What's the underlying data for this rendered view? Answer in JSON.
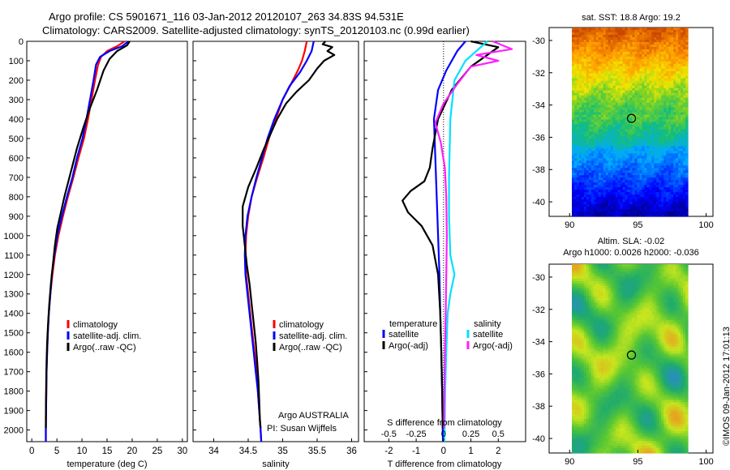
{
  "header": {
    "line1": "Argo profile: CS 5901671_116 03-Jan-2012 20120107_263 34.83S 94.531E",
    "line2": "Climatology: CARS2009. Satellite-adjusted climatology: synTS_20120103.nc (0.99d earlier)"
  },
  "credit": "©IMOS 09-Jan-2012 17:01:13",
  "colors": {
    "clim": "#ff0000",
    "sat": "#0000ff",
    "argo": "#000000",
    "sat_s": "#00e0ff",
    "argo_s": "#ff20ff"
  },
  "chart_data": [
    {
      "type": "line",
      "id": "temperature",
      "xlabel": "temperature (deg C)",
      "xlim": [
        -1,
        31
      ],
      "ylim": [
        2060,
        0
      ],
      "xticks": [
        0,
        5,
        10,
        15,
        20,
        25,
        30
      ],
      "yticks": [
        0,
        100,
        200,
        300,
        400,
        500,
        600,
        700,
        800,
        900,
        1000,
        1100,
        1200,
        1300,
        1400,
        1500,
        1600,
        1700,
        1800,
        1900,
        2000
      ],
      "legend": [
        "climatology",
        "satellite-adj. clim.",
        "Argo(..raw -QC)"
      ],
      "series": [
        {
          "name": "climatology",
          "color": "#ff0000",
          "points": [
            [
              18.5,
              0
            ],
            [
              17,
              25
            ],
            [
              15,
              50
            ],
            [
              13.8,
              80
            ],
            [
              13.2,
              120
            ],
            [
              12.6,
              200
            ],
            [
              11.9,
              300
            ],
            [
              11.2,
              400
            ],
            [
              10.4,
              500
            ],
            [
              9.3,
              600
            ],
            [
              8.3,
              700
            ],
            [
              7.2,
              800
            ],
            [
              6.2,
              900
            ],
            [
              5.3,
              1000
            ],
            [
              4.6,
              1100
            ],
            [
              4.1,
              1200
            ],
            [
              3.7,
              1300
            ],
            [
              3.4,
              1400
            ],
            [
              3.2,
              1500
            ],
            [
              3.05,
              1600
            ],
            [
              2.95,
              1700
            ],
            [
              2.9,
              1800
            ],
            [
              2.85,
              1900
            ],
            [
              2.8,
              2000
            ],
            [
              2.8,
              2060
            ]
          ]
        },
        {
          "name": "satellite-adj. clim.",
          "color": "#0000ff",
          "points": [
            [
              19.3,
              0
            ],
            [
              18,
              25
            ],
            [
              15.5,
              50
            ],
            [
              13.6,
              80
            ],
            [
              12.8,
              120
            ],
            [
              12.3,
              200
            ],
            [
              11.6,
              300
            ],
            [
              10.9,
              400
            ],
            [
              10.1,
              500
            ],
            [
              9.0,
              600
            ],
            [
              8.1,
              700
            ],
            [
              7.0,
              800
            ],
            [
              6.0,
              900
            ],
            [
              5.1,
              1000
            ],
            [
              4.5,
              1100
            ],
            [
              4.0,
              1200
            ],
            [
              3.7,
              1300
            ],
            [
              3.4,
              1400
            ],
            [
              3.2,
              1500
            ],
            [
              3.05,
              1600
            ],
            [
              2.95,
              1700
            ],
            [
              2.9,
              1800
            ],
            [
              2.85,
              1900
            ],
            [
              2.8,
              2000
            ],
            [
              2.8,
              2060
            ]
          ]
        },
        {
          "name": "Argo(..raw -QC)",
          "color": "#000000",
          "points": [
            [
              19.5,
              0
            ],
            [
              19,
              20
            ],
            [
              17,
              50
            ],
            [
              15.5,
              90
            ],
            [
              14.3,
              150
            ],
            [
              13,
              250
            ],
            [
              11.5,
              350
            ],
            [
              10.2,
              450
            ],
            [
              9.0,
              550
            ],
            [
              8.0,
              650
            ],
            [
              7.2,
              730
            ],
            [
              6.5,
              800
            ],
            [
              5.8,
              880
            ],
            [
              5.1,
              960
            ],
            [
              4.6,
              1050
            ],
            [
              4.2,
              1150
            ],
            [
              3.8,
              1250
            ],
            [
              3.5,
              1350
            ],
            [
              3.25,
              1450
            ],
            [
              3.05,
              1550
            ],
            [
              2.95,
              1650
            ],
            [
              2.88,
              1750
            ],
            [
              2.83,
              1850
            ],
            [
              2.8,
              1950
            ],
            [
              2.8,
              1990
            ]
          ]
        }
      ]
    },
    {
      "type": "line",
      "id": "salinity",
      "xlabel": "salinity",
      "xlim": [
        33.7,
        36.1
      ],
      "ylim": [
        2060,
        0
      ],
      "xticks": [
        34,
        34.5,
        35,
        35.5,
        36
      ],
      "legend": [
        "climatology",
        "satellite-adj. clim.",
        "Argo(..raw -QC)"
      ],
      "annotations": [
        "Argo AUSTRALIA",
        "PI: Susan Wijffels"
      ],
      "series": [
        {
          "name": "climatology",
          "color": "#ff0000",
          "points": [
            [
              35.35,
              0
            ],
            [
              35.32,
              50
            ],
            [
              35.28,
              100
            ],
            [
              35.22,
              150
            ],
            [
              35.12,
              220
            ],
            [
              35.0,
              300
            ],
            [
              34.9,
              400
            ],
            [
              34.8,
              500
            ],
            [
              34.72,
              600
            ],
            [
              34.63,
              700
            ],
            [
              34.55,
              800
            ],
            [
              34.5,
              900
            ],
            [
              34.47,
              1000
            ],
            [
              34.46,
              1100
            ],
            [
              34.47,
              1200
            ],
            [
              34.5,
              1300
            ],
            [
              34.53,
              1400
            ],
            [
              34.56,
              1500
            ],
            [
              34.59,
              1600
            ],
            [
              34.62,
              1700
            ],
            [
              34.64,
              1800
            ],
            [
              34.66,
              1900
            ],
            [
              34.68,
              2000
            ],
            [
              34.69,
              2060
            ]
          ]
        },
        {
          "name": "satellite-adj. clim.",
          "color": "#0000ff",
          "points": [
            [
              35.45,
              0
            ],
            [
              35.42,
              50
            ],
            [
              35.35,
              100
            ],
            [
              35.25,
              160
            ],
            [
              35.1,
              230
            ],
            [
              35.0,
              300
            ],
            [
              34.88,
              400
            ],
            [
              34.78,
              500
            ],
            [
              34.7,
              600
            ],
            [
              34.62,
              700
            ],
            [
              34.55,
              800
            ],
            [
              34.49,
              900
            ],
            [
              34.46,
              1000
            ],
            [
              34.45,
              1100
            ],
            [
              34.46,
              1200
            ],
            [
              34.49,
              1300
            ],
            [
              34.52,
              1400
            ],
            [
              34.55,
              1500
            ],
            [
              34.58,
              1600
            ],
            [
              34.61,
              1700
            ],
            [
              34.64,
              1800
            ],
            [
              34.66,
              1900
            ],
            [
              34.68,
              2000
            ],
            [
              34.69,
              2060
            ]
          ]
        },
        {
          "name": "Argo(..raw -QC)",
          "color": "#000000",
          "points": [
            [
              35.62,
              0
            ],
            [
              35.58,
              15
            ],
            [
              35.72,
              30
            ],
            [
              35.65,
              50
            ],
            [
              35.75,
              70
            ],
            [
              35.6,
              100
            ],
            [
              35.5,
              140
            ],
            [
              35.38,
              200
            ],
            [
              35.2,
              260
            ],
            [
              35.05,
              320
            ],
            [
              34.92,
              400
            ],
            [
              34.82,
              480
            ],
            [
              34.72,
              560
            ],
            [
              34.62,
              650
            ],
            [
              34.5,
              750
            ],
            [
              34.42,
              850
            ],
            [
              34.42,
              950
            ],
            [
              34.45,
              1050
            ],
            [
              34.48,
              1150
            ],
            [
              34.52,
              1250
            ],
            [
              34.55,
              1350
            ],
            [
              34.58,
              1450
            ],
            [
              34.61,
              1550
            ],
            [
              34.63,
              1650
            ],
            [
              34.65,
              1750
            ],
            [
              34.66,
              1850
            ],
            [
              34.67,
              1950
            ],
            [
              34.68,
              1990
            ]
          ]
        }
      ]
    },
    {
      "type": "line",
      "id": "difference",
      "xlabel": "T difference from climatology",
      "xlabel_top": "S difference from climatology",
      "xlim": [
        -2.9,
        3.0
      ],
      "ylim": [
        2060,
        0
      ],
      "xticks_bottom": [
        -2,
        -1,
        0,
        1,
        2
      ],
      "xticks_top": [
        "-0.5",
        "-0.25",
        "0",
        "0.25",
        "0.5"
      ],
      "xticks_top_pos": [
        -2,
        -1,
        0,
        1,
        2
      ],
      "legend_left_title": "temperature",
      "legend_right_title": "salinity",
      "legend": [
        "satellite",
        "Argo(-adj)",
        "satellite",
        "Argo(-adj)"
      ],
      "series": [
        {
          "name": "satellite",
          "color": "#0000ff",
          "points": [
            [
              0.8,
              0
            ],
            [
              0.5,
              50
            ],
            [
              0.1,
              150
            ],
            [
              -0.2,
              250
            ],
            [
              -0.35,
              400
            ],
            [
              -0.3,
              600
            ],
            [
              -0.25,
              800
            ],
            [
              -0.2,
              1000
            ],
            [
              -0.15,
              1200
            ],
            [
              -0.12,
              1400
            ],
            [
              -0.08,
              1600
            ],
            [
              -0.05,
              1800
            ],
            [
              -0.03,
              2000
            ],
            [
              -0.02,
              2060
            ]
          ]
        },
        {
          "name": "Argo(-adj)",
          "color": "#000000",
          "points": [
            [
              1.0,
              0
            ],
            [
              2.0,
              30
            ],
            [
              1.6,
              70
            ],
            [
              1.0,
              130
            ],
            [
              0.3,
              250
            ],
            [
              -0.2,
              400
            ],
            [
              -0.4,
              550
            ],
            [
              -0.5,
              650
            ],
            [
              -0.7,
              720
            ],
            [
              -1.2,
              770
            ],
            [
              -1.5,
              820
            ],
            [
              -1.3,
              880
            ],
            [
              -0.8,
              950
            ],
            [
              -0.4,
              1050
            ],
            [
              -0.2,
              1200
            ],
            [
              -0.12,
              1400
            ],
            [
              -0.08,
              1600
            ],
            [
              -0.05,
              1800
            ],
            [
              -0.03,
              1990
            ]
          ]
        },
        {
          "name": "satellite",
          "color": "#00e0ff",
          "points": [
            [
              1.6,
              0
            ],
            [
              1.2,
              50
            ],
            [
              0.8,
              100
            ],
            [
              0.4,
              200
            ],
            [
              0.25,
              400
            ],
            [
              0.2,
              700
            ],
            [
              0.2,
              900
            ],
            [
              0.25,
              1100
            ],
            [
              0.4,
              1200
            ],
            [
              0.25,
              1300
            ],
            [
              0.15,
              1400
            ],
            [
              0.1,
              1600
            ],
            [
              0.06,
              1800
            ],
            [
              0.04,
              2000
            ],
            [
              0.03,
              2060
            ]
          ]
        },
        {
          "name": "Argo(-adj)",
          "color": "#ff20ff",
          "points": [
            [
              1.8,
              0
            ],
            [
              2.5,
              40
            ],
            [
              1.2,
              70
            ],
            [
              2.0,
              100
            ],
            [
              1.0,
              130
            ],
            [
              0.5,
              220
            ],
            [
              0.0,
              320
            ],
            [
              -0.3,
              420
            ],
            [
              -0.1,
              520
            ],
            [
              0.05,
              650
            ],
            [
              0.1,
              800
            ],
            [
              0.12,
              1000
            ],
            [
              0.1,
              1200
            ],
            [
              0.08,
              1400
            ],
            [
              0.05,
              1600
            ],
            [
              0.03,
              1800
            ],
            [
              0.02,
              1990
            ]
          ]
        }
      ]
    },
    {
      "type": "heatmap",
      "id": "sst_map",
      "title": "sat. SST: 18.8  Argo: 19.2",
      "xlim": [
        88.5,
        100.5
      ],
      "ylim": [
        -40.9,
        -29.2
      ],
      "xticks": [
        90,
        95,
        100
      ],
      "yticks": [
        -30,
        -32,
        -34,
        -36,
        -38,
        -40
      ],
      "marker": [
        94.53,
        -34.83
      ]
    },
    {
      "type": "heatmap",
      "id": "sla_map",
      "title": "Altim. SLA: -0.02",
      "subtitle": "Argo h1000: 0.0026  h2000: -0.036",
      "xlim": [
        88.5,
        100.5
      ],
      "ylim": [
        -40.9,
        -29.2
      ],
      "xticks": [
        90,
        95,
        100
      ],
      "yticks": [
        -30,
        -32,
        -34,
        -36,
        -38,
        -40
      ],
      "marker": [
        94.53,
        -34.83
      ]
    }
  ]
}
